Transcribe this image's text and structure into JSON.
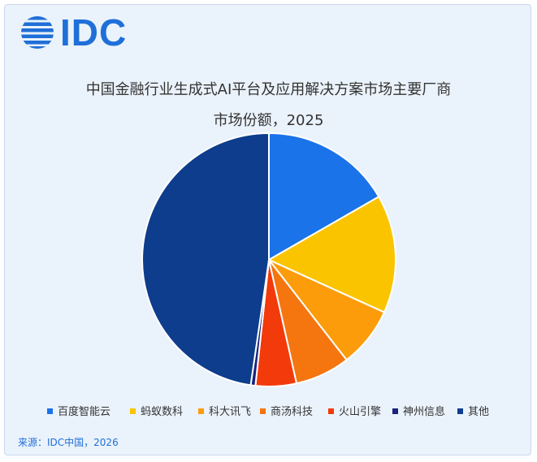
{
  "logo": {
    "text": "IDC",
    "color": "#1f6fd8"
  },
  "header": {
    "title_line1": "中国金融行业生成式AI平台及应用解决方案市场主要厂商",
    "title_line2": "市场份额，2025"
  },
  "source": "来源：IDC中国，2026",
  "chart_data": {
    "type": "pie",
    "title": "中国金融行业生成式AI平台及应用解决方案市场主要厂商市场份额，2025",
    "legend_position": "bottom",
    "start_angle": "12 o'clock",
    "direction": "clockwise",
    "slices": [
      {
        "name": "百度智能云",
        "value": 16.7,
        "color": "#1a73e8"
      },
      {
        "name": "蚂蚁数科",
        "value": 15.1,
        "color": "#fbc400"
      },
      {
        "name": "科大讯飞",
        "value": 7.7,
        "color": "#fc9c0a"
      },
      {
        "name": "商汤科技",
        "value": 7.0,
        "color": "#f5750f"
      },
      {
        "name": "火山引擎",
        "value": 5.2,
        "color": "#f23a0a"
      },
      {
        "name": "神州信息",
        "value": 0.6,
        "color": "#1a237e"
      },
      {
        "name": "其他",
        "value": 47.7,
        "color": "#0d3d8c"
      }
    ]
  }
}
